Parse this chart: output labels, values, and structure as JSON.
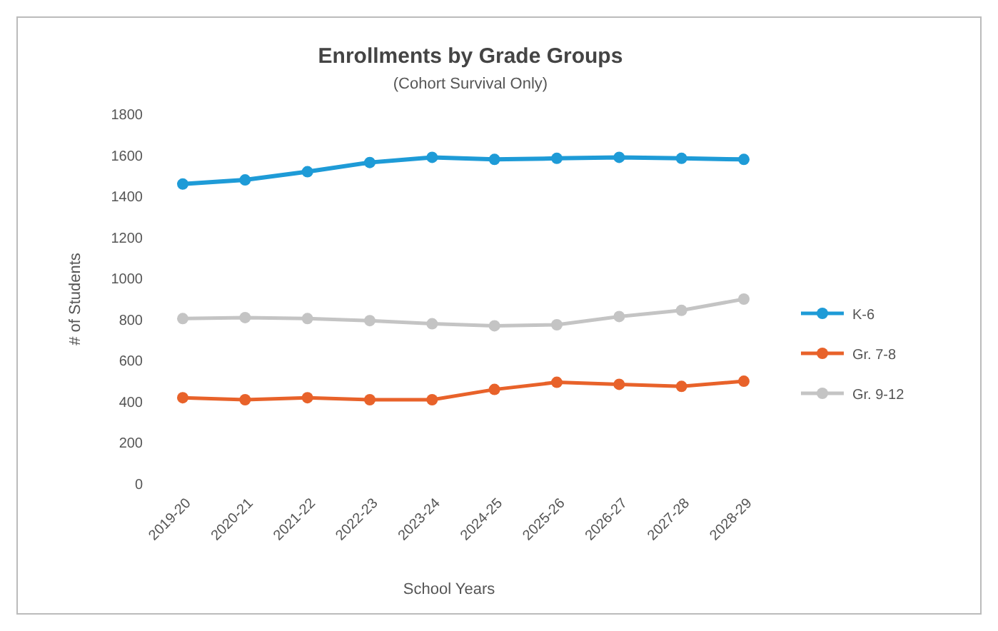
{
  "chart_data": {
    "type": "line",
    "title": "Enrollments by Grade Groups",
    "subtitle": "(Cohort Survival Only)",
    "xlabel": "School Years",
    "ylabel": "# of Students",
    "categories": [
      "2019-20",
      "2020-21",
      "2021-22",
      "2022-23",
      "2023-24",
      "2024-25",
      "2025-26",
      "2026-27",
      "2027-28",
      "2028-29"
    ],
    "series": [
      {
        "name": "K-6",
        "color": "#1e9bd7",
        "values": [
          1460,
          1480,
          1520,
          1565,
          1590,
          1580,
          1585,
          1590,
          1585,
          1580
        ]
      },
      {
        "name": "Gr. 7-8",
        "color": "#e8622a",
        "values": [
          420,
          410,
          420,
          410,
          410,
          460,
          495,
          485,
          475,
          500
        ]
      },
      {
        "name": "Gr. 9-12",
        "color": "#c4c4c4",
        "values": [
          805,
          810,
          805,
          795,
          780,
          770,
          775,
          815,
          845,
          900
        ]
      }
    ],
    "ylim": [
      0,
      1800
    ],
    "yticks": [
      0,
      200,
      400,
      600,
      800,
      1000,
      1200,
      1400,
      1600,
      1800
    ],
    "grid": false,
    "legend": "right",
    "marker": "circle",
    "line_style": "solid"
  }
}
